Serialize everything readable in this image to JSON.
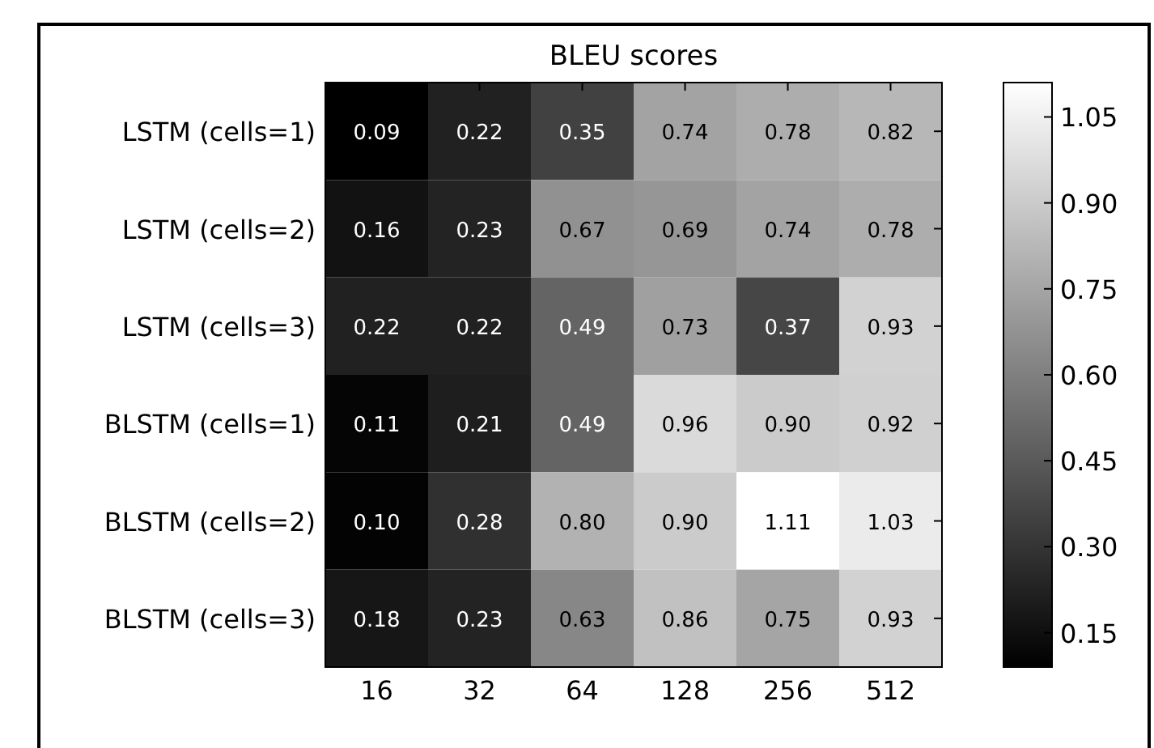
{
  "chart_data": {
    "type": "heatmap",
    "title": "BLEU scores",
    "categories": [
      "16",
      "32",
      "64",
      "128",
      "256",
      "512"
    ],
    "y_categories": [
      "LSTM (cells=1)",
      "LSTM (cells=2)",
      "LSTM (cells=3)",
      "BLSTM (cells=1)",
      "BLSTM (cells=2)",
      "BLSTM (cells=3)"
    ],
    "cells": [
      [
        0.09,
        0.22,
        0.35,
        0.74,
        0.78,
        0.82
      ],
      [
        0.16,
        0.23,
        0.67,
        0.69,
        0.74,
        0.78
      ],
      [
        0.22,
        0.22,
        0.49,
        0.73,
        0.37,
        0.93
      ],
      [
        0.11,
        0.21,
        0.49,
        0.96,
        0.9,
        0.92
      ],
      [
        0.1,
        0.28,
        0.8,
        0.9,
        1.11,
        1.03
      ],
      [
        0.18,
        0.23,
        0.63,
        0.86,
        0.75,
        0.93
      ]
    ],
    "cell_labels": [
      [
        "0.09",
        "0.22",
        "0.35",
        "0.74",
        "0.78",
        "0.82"
      ],
      [
        "0.16",
        "0.23",
        "0.67",
        "0.69",
        "0.74",
        "0.78"
      ],
      [
        "0.22",
        "0.22",
        "0.49",
        "0.73",
        "0.37",
        "0.93"
      ],
      [
        "0.11",
        "0.21",
        "0.49",
        "0.96",
        "0.90",
        "0.92"
      ],
      [
        "0.10",
        "0.28",
        "0.80",
        "0.90",
        "1.11",
        "1.03"
      ],
      [
        "0.18",
        "0.23",
        "0.63",
        "0.86",
        "0.75",
        "0.93"
      ]
    ],
    "clim": [
      0.09,
      1.11
    ],
    "cticks": [
      {
        "value": 0.15,
        "label": "0.15"
      },
      {
        "value": 0.3,
        "label": "0.30"
      },
      {
        "value": 0.45,
        "label": "0.45"
      },
      {
        "value": 0.6,
        "label": "0.60"
      },
      {
        "value": 0.75,
        "label": "0.75"
      },
      {
        "value": 0.9,
        "label": "0.90"
      },
      {
        "value": 1.05,
        "label": "1.05"
      }
    ]
  }
}
